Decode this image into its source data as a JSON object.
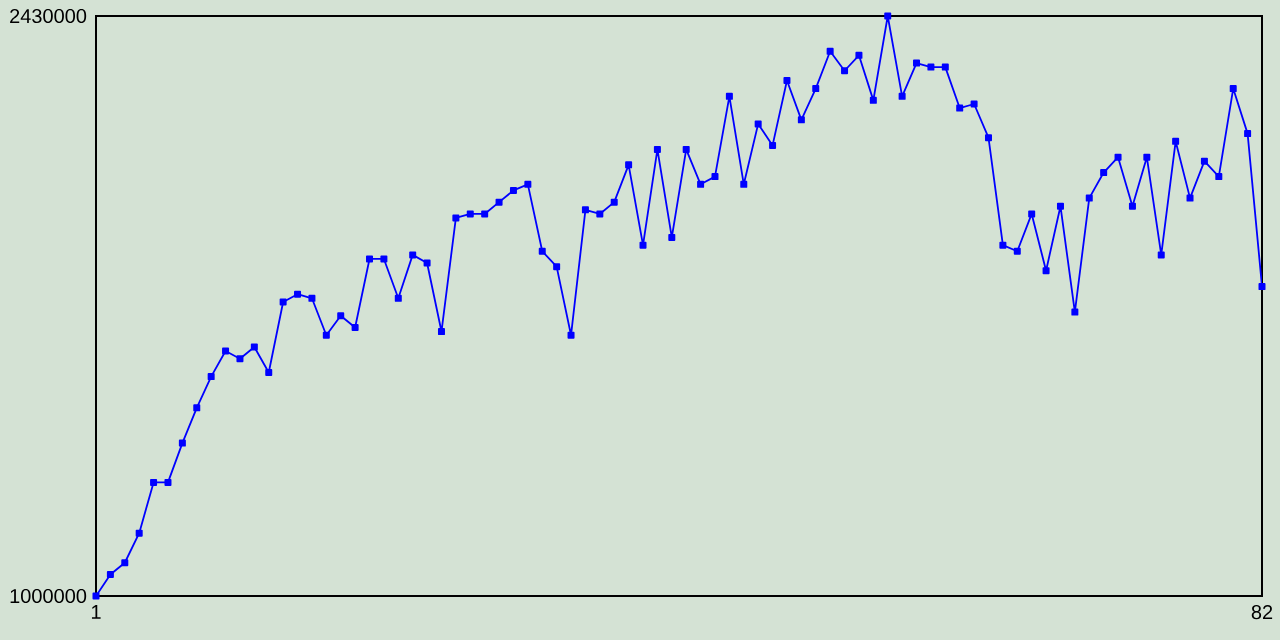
{
  "chart_data": {
    "type": "line",
    "x": [
      1,
      2,
      3,
      4,
      5,
      6,
      7,
      8,
      9,
      10,
      11,
      12,
      13,
      14,
      15,
      16,
      17,
      18,
      19,
      20,
      21,
      22,
      23,
      24,
      25,
      26,
      27,
      28,
      29,
      30,
      31,
      32,
      33,
      34,
      35,
      36,
      37,
      38,
      39,
      40,
      41,
      42,
      43,
      44,
      45,
      46,
      47,
      48,
      49,
      50,
      51,
      52,
      53,
      54,
      55,
      56,
      57,
      58,
      59,
      60,
      61,
      62,
      63,
      64,
      65,
      66,
      67,
      68,
      69,
      70,
      71,
      72,
      73,
      74,
      75,
      76,
      77,
      78,
      79,
      80,
      81,
      82
    ],
    "series": [
      {
        "color": "#0000ff",
        "values": [
          1000000,
          1053000,
          1082000,
          1155000,
          1280000,
          1280000,
          1377000,
          1464000,
          1541000,
          1604000,
          1585000,
          1614000,
          1551000,
          1725000,
          1744000,
          1734000,
          1643000,
          1691000,
          1662000,
          1831000,
          1831000,
          1734000,
          1841000,
          1821000,
          1652000,
          1932000,
          1942000,
          1942000,
          1971000,
          2000000,
          2015000,
          1850000,
          1812000,
          1643000,
          1952000,
          1942000,
          1971000,
          2063000,
          1865000,
          2101000,
          1884000,
          2101000,
          2015000,
          2034000,
          2232000,
          2015000,
          2164000,
          2111000,
          2271000,
          2174000,
          2251000,
          2343000,
          2295000,
          2333000,
          2222000,
          2430000,
          2232000,
          2314000,
          2304000,
          2304000,
          2203000,
          2213000,
          2130000,
          1865000,
          1850000,
          1942000,
          1802000,
          1961000,
          1700000,
          1981000,
          2044000,
          2082000,
          1961000,
          2082000,
          1841000,
          2121000,
          1981000,
          2072000,
          2034000,
          2251000,
          2140000,
          1763000
        ]
      }
    ],
    "xlim": [
      1,
      82
    ],
    "xticks": [
      1,
      82
    ],
    "ylim": [
      1000000,
      2430000
    ],
    "yticks": [
      1000000,
      2430000
    ],
    "marker": "square",
    "line_style": "solid"
  }
}
